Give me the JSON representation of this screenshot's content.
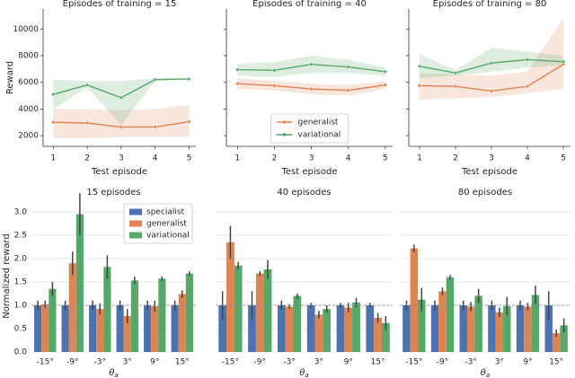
{
  "chart_data": [
    {
      "type": "line",
      "title": "Episodes of training = 15",
      "x_label": "Test episode",
      "y_label": "Reward",
      "x": [
        1,
        2,
        3,
        4,
        5
      ],
      "xlim": [
        0.7,
        5.2
      ],
      "xticks": [
        1,
        2,
        3,
        4,
        5
      ],
      "ylim": [
        1200,
        11500
      ],
      "yticks": [
        2000,
        4000,
        6000,
        8000,
        10000
      ],
      "ytick_labels": true,
      "series": [
        {
          "color": "#dd8452",
          "values": [
            3000,
            2950,
            2650,
            2650,
            3050
          ],
          "lower": [
            1800,
            1800,
            1900,
            1900,
            1900
          ],
          "upper": [
            4000,
            4000,
            3900,
            4000,
            4300
          ]
        },
        {
          "color": "#55a868",
          "values": [
            5100,
            5800,
            4850,
            6200,
            6250
          ],
          "lower": [
            4000,
            5600,
            2800,
            6100,
            6200
          ],
          "upper": [
            6200,
            6100,
            6100,
            6300,
            6300
          ]
        }
      ]
    },
    {
      "type": "line",
      "title": "Episodes of training = 40",
      "x_label": "Test episode",
      "x": [
        1,
        2,
        3,
        4,
        5
      ],
      "xlim": [
        0.7,
        5.2
      ],
      "xticks": [
        1,
        2,
        3,
        4,
        5
      ],
      "ylim": [
        1200,
        11500
      ],
      "yticks": [
        2000,
        4000,
        6000,
        8000,
        10000
      ],
      "ytick_labels": false,
      "legend": "lower center",
      "series": [
        {
          "name": "generalist",
          "color": "#dd8452",
          "values": [
            5900,
            5750,
            5500,
            5400,
            5800
          ],
          "lower": [
            5500,
            5400,
            5100,
            5000,
            5500
          ],
          "upper": [
            6300,
            6100,
            5900,
            5800,
            6100
          ]
        },
        {
          "name": "variational",
          "color": "#55a868",
          "values": [
            6950,
            6900,
            7350,
            7150,
            6800
          ],
          "lower": [
            6500,
            6400,
            6700,
            6700,
            6500
          ],
          "upper": [
            7400,
            7500,
            8000,
            7700,
            7100
          ]
        }
      ]
    },
    {
      "type": "line",
      "title": "Episodes of training = 80",
      "x_label": "Test episode",
      "x": [
        1,
        2,
        3,
        4,
        5
      ],
      "xlim": [
        0.7,
        5.2
      ],
      "xticks": [
        1,
        2,
        3,
        4,
        5
      ],
      "ylim": [
        1200,
        11500
      ],
      "yticks": [
        2000,
        4000,
        6000,
        8000,
        10000
      ],
      "ytick_labels": false,
      "series": [
        {
          "color": "#dd8452",
          "values": [
            5750,
            5700,
            5350,
            5700,
            7350
          ],
          "lower": [
            4700,
            4800,
            4900,
            5200,
            5500
          ],
          "upper": [
            6700,
            6600,
            6500,
            6800,
            10800
          ]
        },
        {
          "color": "#55a868",
          "values": [
            7200,
            6700,
            7450,
            7700,
            7550
          ],
          "lower": [
            6300,
            6500,
            6800,
            7100,
            7300
          ],
          "upper": [
            8100,
            6900,
            8600,
            8300,
            8000
          ]
        }
      ]
    },
    {
      "type": "bar",
      "title": "15 episodes",
      "x_label": {
        "symbol": "θ",
        "subscript": "a"
      },
      "y_label": "Normalized reward",
      "categories": [
        "-15°",
        "-9°",
        "-3°",
        "3°",
        "9°",
        "15°"
      ],
      "ylim": [
        0,
        3.25
      ],
      "yticks": [
        {
          "value": 0,
          "label": "0.0"
        },
        0.5,
        {
          "value": 1,
          "label": "1.0"
        },
        1.5,
        {
          "value": 2,
          "label": "2.0"
        },
        2.5,
        {
          "value": 3,
          "label": "3.0"
        }
      ],
      "ytick_labels": true,
      "grid": true,
      "reference_line": 1,
      "legend": "upper right",
      "series": [
        {
          "name": "specialist",
          "color": "#4c72b0",
          "values": [
            1,
            1,
            1,
            1,
            1,
            1
          ],
          "errors": [
            0.1,
            0.1,
            0.1,
            0.1,
            0.1,
            0.1
          ]
        },
        {
          "name": "generalist",
          "color": "#dd8452",
          "values": [
            1.02,
            1.9,
            0.92,
            0.77,
            0.98,
            1.24
          ],
          "errors": [
            0.08,
            0.25,
            0.12,
            0.15,
            0.12,
            0.08
          ]
        },
        {
          "name": "variational",
          "color": "#55a868",
          "values": [
            1.35,
            2.95,
            1.82,
            1.53,
            1.57,
            1.68
          ],
          "errors": [
            0.15,
            0.45,
            0.25,
            0.08,
            0.05,
            0.05
          ]
        }
      ]
    },
    {
      "type": "bar",
      "title": "40 episodes",
      "x_label": {
        "symbol": "θ",
        "subscript": "a"
      },
      "categories": [
        "-15°",
        "-9°",
        "-3°",
        "3°",
        "9°",
        "15°"
      ],
      "ylim": [
        0,
        3.25
      ],
      "yticks": [
        0,
        0.5,
        1,
        1.5,
        2,
        2.5,
        3
      ],
      "ytick_labels": false,
      "grid": true,
      "reference_line": 1,
      "series": [
        {
          "color": "#4c72b0",
          "values": [
            1,
            1,
            1,
            1,
            1,
            1
          ],
          "errors": [
            0.3,
            0.3,
            0.1,
            0.05,
            0.05,
            0.05
          ]
        },
        {
          "color": "#dd8452",
          "values": [
            2.35,
            1.68,
            0.97,
            0.8,
            0.95,
            0.73
          ],
          "errors": [
            0.35,
            0.05,
            0.05,
            0.08,
            0.1,
            0.1
          ]
        },
        {
          "color": "#55a868",
          "values": [
            1.85,
            1.77,
            1.2,
            0.92,
            1.06,
            0.62
          ],
          "errors": [
            0.08,
            0.2,
            0.05,
            0.08,
            0.1,
            0.15
          ]
        }
      ]
    },
    {
      "type": "bar",
      "title": "80 episodes",
      "x_label": {
        "symbol": "θ",
        "subscript": "a"
      },
      "categories": [
        "-15°",
        "-9°",
        "-3°",
        "3°",
        "9°",
        "15°"
      ],
      "ylim": [
        0,
        3.25
      ],
      "yticks": [
        0,
        0.5,
        1,
        1.5,
        2,
        2.5,
        3
      ],
      "ytick_labels": false,
      "grid": true,
      "reference_line": 1,
      "series": [
        {
          "color": "#4c72b0",
          "values": [
            1,
            1,
            1,
            1,
            1,
            1
          ],
          "errors": [
            0.1,
            0.1,
            0.1,
            0.1,
            0.1,
            0.3
          ]
        },
        {
          "color": "#dd8452",
          "values": [
            2.22,
            1.3,
            0.97,
            0.85,
            0.97,
            0.4
          ],
          "errors": [
            0.08,
            0.08,
            0.1,
            0.1,
            0.08,
            0.08
          ]
        },
        {
          "color": "#55a868",
          "values": [
            1.12,
            1.6,
            1.2,
            0.98,
            1.22,
            0.57
          ],
          "errors": [
            0.25,
            0.05,
            0.15,
            0.2,
            0.2,
            0.15
          ]
        }
      ]
    }
  ]
}
